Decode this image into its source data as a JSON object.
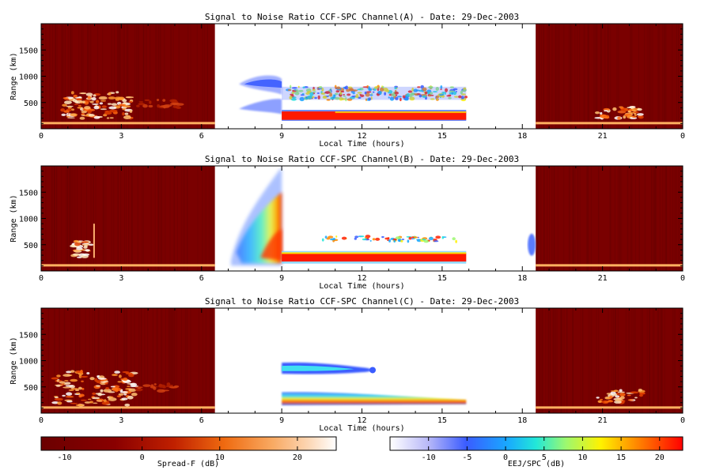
{
  "chart_data": [
    {
      "type": "heatmap",
      "title": "Signal to Noise Ratio CCF-SPC Channel(A) - Date: 29-Dec-2003",
      "xlabel": "Local Time (hours)",
      "ylabel": "Range (km)",
      "xlim": [
        0,
        24
      ],
      "ylim": [
        0,
        2000
      ],
      "xticks": [
        "0",
        "3",
        "6",
        "9",
        "12",
        "15",
        "18",
        "21",
        "0"
      ],
      "yticks": [
        500,
        1000,
        1500
      ],
      "regions": [
        {
          "mode": "Spread-F",
          "x_range": [
            0,
            6.5
          ],
          "description": "background near -12 dB with enhanced echoes 150-750 km around 1-3.5 h and near 5 h"
        },
        {
          "mode": "EEJ/SPC",
          "x_range": [
            6.5,
            9
          ],
          "description": "echo band 750-1050 km and layer 250-550 km"
        },
        {
          "mode": "EEJ/SPC",
          "x_range": [
            9,
            16
          ],
          "description": "strong layer 150-350 km near 20 dB and scattered echoes 550-800 km"
        },
        {
          "mode": "Spread-F",
          "x_range": [
            18.5,
            24
          ],
          "description": "background with echoes 200-400 km around 20.8-22.5 h"
        }
      ]
    },
    {
      "type": "heatmap",
      "title": "Signal to Noise Ratio CCF-SPC Channel(B) - Date: 29-Dec-2003",
      "xlabel": "Local Time (hours)",
      "ylabel": "Range (km)",
      "xlim": [
        0,
        24
      ],
      "ylim": [
        0,
        2000
      ],
      "xticks": [
        "0",
        "3",
        "6",
        "9",
        "12",
        "15",
        "18",
        "21",
        "0"
      ],
      "yticks": [
        500,
        1000,
        1500
      ],
      "regions": [
        {
          "mode": "Spread-F",
          "x_range": [
            0,
            6.5
          ],
          "description": "weak echoes 250-600 km near 1.2-2 h, spike to 900 km near 2 h"
        },
        {
          "mode": "EEJ/SPC",
          "x_range": [
            6.5,
            9
          ],
          "description": "plume widening with height from 7 h to 9 h, up to 1950 km"
        },
        {
          "mode": "EEJ/SPC",
          "x_range": [
            9,
            16
          ],
          "description": "strong layer 150-350 km and scattered echoes near 600 km"
        },
        {
          "mode": "EEJ/SPC",
          "x_range": [
            18.2,
            18.5
          ],
          "description": "weak echo 350-650 km"
        },
        {
          "mode": "Spread-F",
          "x_range": [
            18.5,
            24
          ],
          "description": "background only"
        }
      ]
    },
    {
      "type": "heatmap",
      "title": "Signal to Noise Ratio CCF-SPC Channel(C) - Date: 29-Dec-2003",
      "xlabel": "Local Time (hours)",
      "ylabel": "Range (km)",
      "xlim": [
        0,
        24
      ],
      "ylim": [
        0,
        2000
      ],
      "xticks": [
        "0",
        "3",
        "6",
        "9",
        "12",
        "15",
        "18",
        "21",
        "0"
      ],
      "yticks": [
        500,
        1000,
        1500
      ],
      "regions": [
        {
          "mode": "Spread-F",
          "x_range": [
            0,
            6.5
          ],
          "description": "enhanced echoes 150-800 km around 0.5-3.5 h"
        },
        {
          "mode": "EEJ/SPC",
          "x_range": [
            9,
            12.5
          ],
          "description": "band 750-950 km"
        },
        {
          "mode": "EEJ/SPC",
          "x_range": [
            9,
            16
          ],
          "description": "layer 150-400 km"
        },
        {
          "mode": "Spread-F",
          "x_range": [
            18.5,
            24
          ],
          "description": "echoes 200-450 km around 20.8-22.5 h"
        }
      ]
    }
  ],
  "colorbars": [
    {
      "label": "Spread-F (dB)",
      "range": [
        -13,
        25
      ],
      "ticks": [
        "-10",
        "0",
        "10",
        "20"
      ],
      "colormap": "hot (dark red to white)"
    },
    {
      "label": "EEJ/SPC (dB)",
      "range": [
        -15,
        23
      ],
      "ticks": [
        "-10",
        "-5",
        "0",
        "5",
        "10",
        "15",
        "20"
      ],
      "colormap": "white-blue-cyan-yellow-red"
    }
  ]
}
